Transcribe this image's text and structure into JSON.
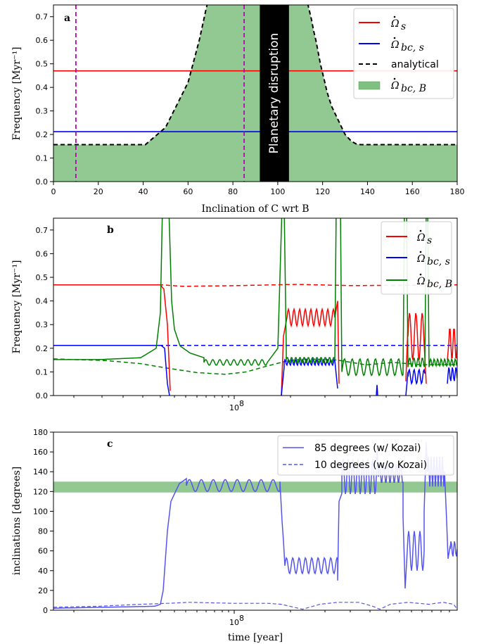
{
  "chart_data": [
    {
      "panel": "a",
      "type": "line",
      "xlabel": "Inclination of C wrt B",
      "ylabel": "Frequency [Myr⁻¹]",
      "xlim": [
        0,
        180
      ],
      "ylim": [
        0,
        0.75
      ],
      "xticks": [
        0,
        20,
        40,
        60,
        80,
        100,
        120,
        140,
        160,
        180
      ],
      "yticks": [
        0.0,
        0.1,
        0.2,
        0.3,
        0.4,
        0.5,
        0.6,
        0.7
      ],
      "series": [
        {
          "name": "Ω̇_s",
          "color": "#ff0000",
          "style": "solid",
          "x": [
            0,
            180
          ],
          "y": [
            0.47,
            0.47
          ]
        },
        {
          "name": "Ω̇_bc,s",
          "color": "#0000ff",
          "style": "solid",
          "x": [
            0,
            180
          ],
          "y": [
            0.212,
            0.212
          ]
        },
        {
          "name": "analytical",
          "color": "#000000",
          "style": "dashed",
          "x": [
            0,
            41,
            50,
            60,
            65,
            68,
            69,
            70,
            85,
            86,
            87,
            88,
            89,
            90,
            91,
            92,
            93,
            94,
            95,
            96,
            97,
            98,
            99,
            100,
            101,
            102,
            103,
            104,
            105,
            106,
            107,
            108,
            109,
            110,
            111,
            112,
            113,
            114,
            115,
            116,
            117,
            118,
            119,
            120,
            121,
            122,
            123,
            124,
            125,
            126,
            127,
            128,
            129,
            130,
            131,
            132,
            133,
            134,
            135,
            136,
            137,
            138,
            139,
            140,
            141,
            142,
            143,
            144,
            145,
            146,
            147,
            148,
            149,
            150,
            151,
            152,
            153,
            154,
            155,
            156,
            157,
            158,
            159,
            160,
            161,
            162,
            163,
            164,
            165,
            166,
            167,
            168,
            169,
            170,
            171,
            172,
            173,
            174,
            175,
            176,
            177,
            178,
            179,
            180
          ],
          "y": [
            0.157,
            0.157,
            0.23,
            0.42,
            0.6,
            0.73,
            0.77,
            0.8,
            0.8,
            0.8,
            0.8,
            0.8,
            0.8,
            0.8,
            0.8,
            0.8,
            0.8,
            0.8,
            0.8,
            0.8,
            0.8,
            0.8,
            0.8,
            0.8,
            0.8,
            0.8,
            0.8,
            0.8,
            0.8,
            0.8,
            0.8,
            0.8,
            0.8,
            0.8,
            0.8,
            0.8,
            0.77,
            0.73,
            0.69,
            0.64,
            0.6,
            0.55,
            0.5,
            0.46,
            0.42,
            0.38,
            0.35,
            0.32,
            0.3,
            0.28,
            0.26,
            0.24,
            0.22,
            0.2,
            0.19,
            0.18,
            0.17,
            0.165,
            0.16,
            0.158,
            0.157,
            0.157,
            0.157,
            0.157,
            0.157,
            0.157,
            0.157,
            0.157,
            0.157,
            0.157,
            0.157,
            0.157,
            0.157,
            0.157,
            0.157,
            0.157,
            0.157,
            0.157,
            0.157,
            0.157,
            0.157,
            0.157,
            0.157,
            0.157,
            0.157,
            0.157,
            0.157,
            0.157,
            0.157,
            0.157,
            0.157,
            0.157,
            0.157,
            0.157,
            0.157,
            0.157,
            0.157,
            0.157,
            0.157,
            0.157,
            0.157,
            0.157,
            0.157,
            0.157
          ]
        },
        {
          "name": "Ω̇_bc,B",
          "color": "#77bb77",
          "style": "fill"
        }
      ],
      "vlines": [
        {
          "x": 10,
          "color": "#bb00bb",
          "style": "dashed"
        },
        {
          "x": 85,
          "color": "#bb00bb",
          "style": "dashed"
        }
      ],
      "band": {
        "x0": 92,
        "x1": 105,
        "color": "#000000",
        "text": "Planetary disruption"
      },
      "legend": "top-right"
    },
    {
      "panel": "b",
      "type": "line",
      "xlabel": "",
      "ylabel": "Frequency [Myr⁻¹]",
      "xscale": "log",
      "xticks": [
        "10⁸"
      ],
      "ylim": [
        0,
        0.75
      ],
      "yticks": [
        0.0,
        0.1,
        0.2,
        0.3,
        0.4,
        0.5,
        0.6,
        0.7
      ],
      "series": [
        {
          "name": "Ω̇_s",
          "color": "#ff0000"
        },
        {
          "name": "Ω̇_bc,s",
          "color": "#0000ff"
        },
        {
          "name": "Ω̇_bc,B",
          "color": "#008000"
        }
      ],
      "legend": "top-right"
    },
    {
      "panel": "c",
      "type": "line",
      "xlabel": "time [year]",
      "ylabel": "inclinations [degrees]",
      "xscale": "log",
      "xticks": [
        "10⁸"
      ],
      "ylim": [
        0,
        180
      ],
      "yticks": [
        0,
        20,
        40,
        60,
        80,
        100,
        120,
        140,
        160,
        180
      ],
      "band": {
        "y0": 119,
        "y1": 130,
        "color": "#77bb77"
      },
      "series": [
        {
          "name": "85 degrees (w/ Kozai)",
          "color": "#5555ee",
          "style": "solid"
        },
        {
          "name": "10 degrees (w/o Kozai)",
          "color": "#5555ee",
          "style": "dashed"
        }
      ],
      "legend": "top-right"
    }
  ],
  "panels": {
    "a": {
      "label": "a",
      "xlabel": "Inclination of C wrt B",
      "ylabel": "Frequency [Myr⁻¹]",
      "band_text": "Planetary disruption",
      "legend_analytical": "analytical"
    },
    "b": {
      "label": "b",
      "ylabel": "Frequency [Myr⁻¹]",
      "xtick": "10"
    },
    "c": {
      "label": "c",
      "xlabel": "time [year]",
      "ylabel": "inclinations [degrees]",
      "xtick": "10",
      "legend1": "85 degrees (w/ Kozai)",
      "legend2": "10 degrees (w/o Kozai)"
    }
  }
}
